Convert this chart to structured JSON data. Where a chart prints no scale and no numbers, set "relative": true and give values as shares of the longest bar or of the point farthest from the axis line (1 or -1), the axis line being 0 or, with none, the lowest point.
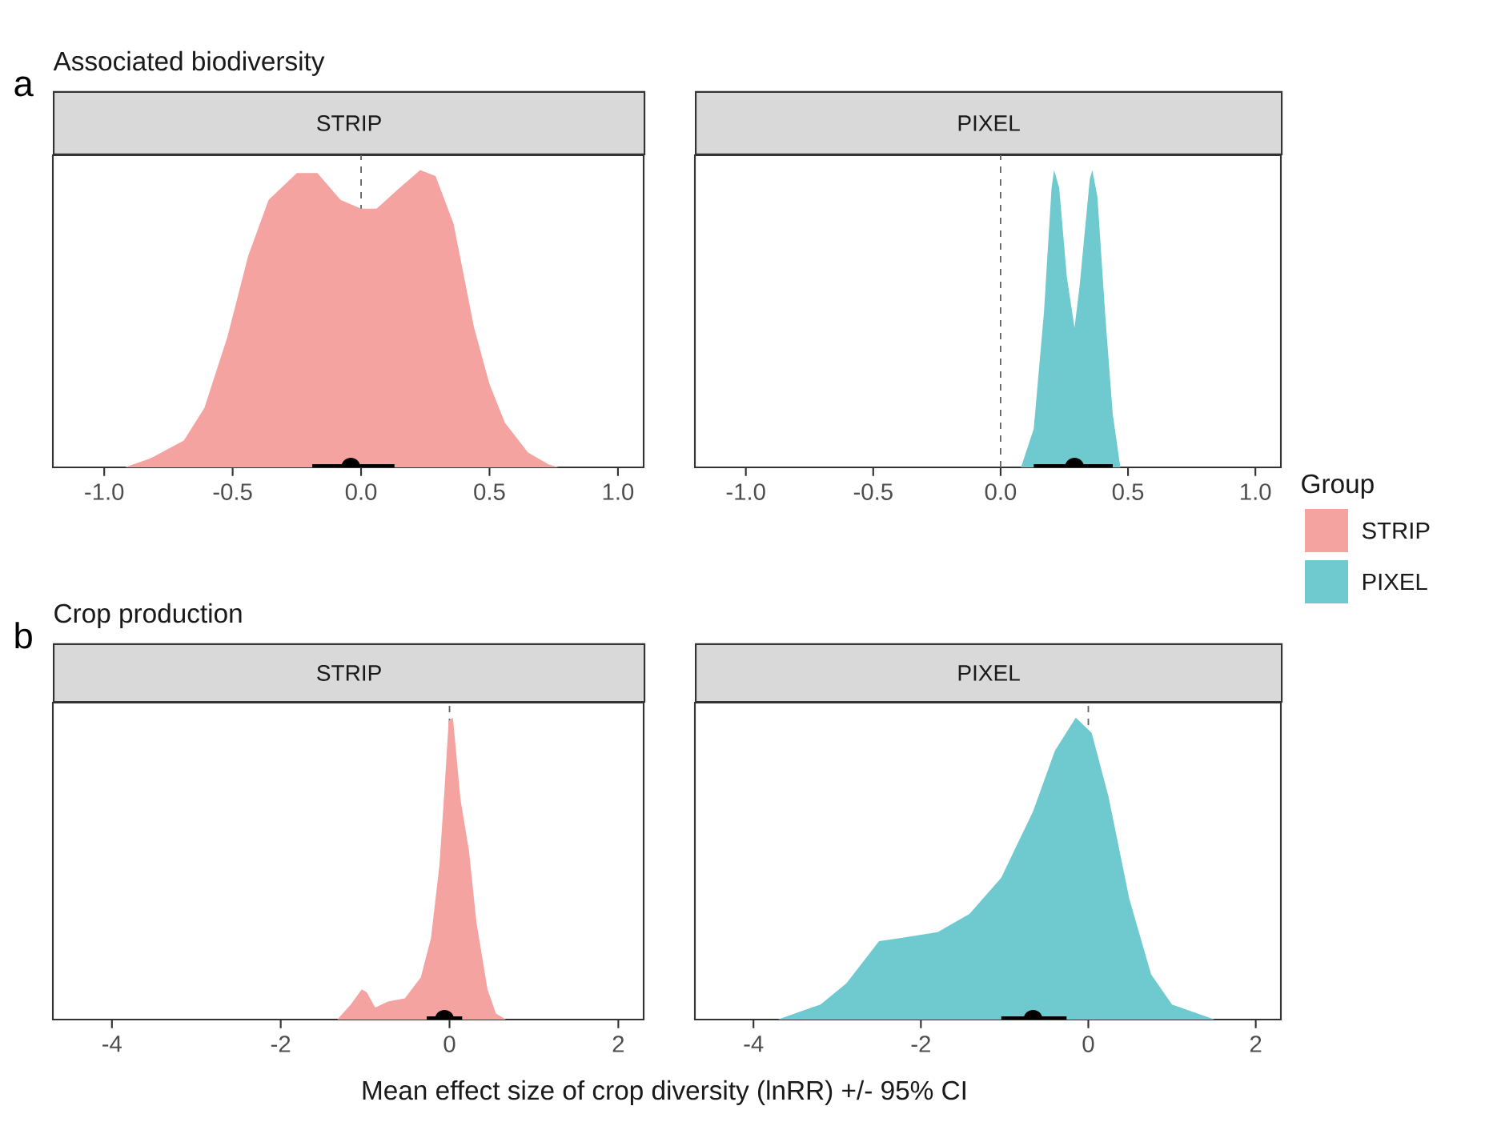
{
  "chart_data": [
    {
      "type": "area",
      "title": "Associated biodiversity",
      "subtitle": "STRIP",
      "annotations": [
        "a"
      ],
      "relative": true,
      "xlim": [
        -1.2,
        1.1
      ],
      "xticks": [
        {
          "value": -1,
          "label": "-1.0"
        },
        -0.5,
        {
          "value": 0,
          "label": "0.0"
        },
        0.5,
        {
          "value": 1,
          "label": "1.0"
        }
      ],
      "ref_lines": [
        {
          "axis": "x",
          "value": 0,
          "color": "#666666",
          "line_style": "dashed"
        }
      ],
      "series": [
        {
          "name": "STRIP",
          "color": "#f5a3a0",
          "x": [
            -0.92,
            -0.82,
            -0.69,
            -0.61,
            -0.52,
            -0.44,
            -0.36,
            -0.25,
            -0.17,
            -0.08,
            0,
            0.06,
            0.15,
            0.23,
            0.29,
            0.36,
            0.44,
            0.5,
            0.56,
            0.65,
            0.73,
            0.77
          ],
          "values": [
            0,
            0.03,
            0.09,
            0.2,
            0.44,
            0.71,
            0.9,
            0.99,
            0.99,
            0.9,
            0.87,
            0.87,
            0.94,
            1,
            0.98,
            0.82,
            0.47,
            0.28,
            0.15,
            0.05,
            0.01,
            0
          ]
        },
        {
          "type": "scatter",
          "color": "#000000",
          "marker": "circle",
          "x": [
            -0.04
          ],
          "values": [
            0
          ],
          "xerrors": [
            [
              -0.19,
              0.13
            ]
          ]
        }
      ]
    },
    {
      "type": "area",
      "subtitle": "PIXEL",
      "relative": true,
      "xlim": [
        -1.2,
        1.1
      ],
      "xticks": [
        {
          "value": -1,
          "label": "-1.0"
        },
        -0.5,
        {
          "value": 0,
          "label": "0.0"
        },
        0.5,
        {
          "value": 1,
          "label": "1.0"
        }
      ],
      "legend": "right",
      "legend_title": "Group",
      "ref_lines": [
        {
          "axis": "x",
          "value": 0,
          "color": "#666666",
          "line_style": "dashed"
        }
      ],
      "series": [
        {
          "name": "PIXEL",
          "color": "#6fcad0",
          "x": [
            0.08,
            0.13,
            0.17,
            0.2,
            0.21,
            0.23,
            0.26,
            0.29,
            0.31,
            0.35,
            0.36,
            0.38,
            0.41,
            0.44,
            0.47
          ],
          "values": [
            0,
            0.13,
            0.52,
            0.94,
            1,
            0.94,
            0.64,
            0.47,
            0.61,
            0.97,
            1,
            0.91,
            0.52,
            0.18,
            0
          ]
        },
        {
          "type": "scatter",
          "color": "#000000",
          "marker": "circle",
          "x": [
            0.29
          ],
          "values": [
            0
          ],
          "xerrors": [
            [
              0.13,
              0.44
            ]
          ]
        }
      ]
    },
    {
      "type": "area",
      "title": "Crop production",
      "subtitle": "STRIP",
      "annotations": [
        "b"
      ],
      "xlabel": "Mean effect size of crop diversity (lnRR) +/- 95% CI",
      "relative": true,
      "xlim": [
        -4.7,
        2.3
      ],
      "xticks": [
        -4,
        -2,
        0,
        2
      ],
      "ref_lines": [
        {
          "axis": "x",
          "value": 0,
          "color": "#666666",
          "line_style": "dashed"
        }
      ],
      "series": [
        {
          "color": "#f5a3a0",
          "x": [
            -1.33,
            -1.17,
            -1.04,
            -0.98,
            -0.88,
            -0.73,
            -0.53,
            -0.34,
            -0.22,
            -0.12,
            -0.06,
            -0.01,
            0.04,
            0.13,
            0.23,
            0.32,
            0.45,
            0.55,
            0.67
          ],
          "values": [
            0,
            0.05,
            0.1,
            0.09,
            0.04,
            0.06,
            0.07,
            0.14,
            0.27,
            0.51,
            0.76,
            0.99,
            1,
            0.73,
            0.56,
            0.32,
            0.1,
            0.02,
            0
          ]
        },
        {
          "type": "scatter",
          "color": "#000000",
          "marker": "circle",
          "x": [
            -0.06
          ],
          "values": [
            0
          ],
          "xerrors": [
            [
              -0.27,
              0.15
            ]
          ]
        }
      ]
    },
    {
      "type": "area",
      "subtitle": "PIXEL",
      "relative": true,
      "xlim": [
        -4.7,
        2.3
      ],
      "xticks": [
        -4,
        -2,
        0,
        2
      ],
      "ref_lines": [
        {
          "axis": "x",
          "value": 0,
          "color": "#666666",
          "line_style": "dashed"
        }
      ],
      "series": [
        {
          "color": "#6fcad0",
          "x": [
            -3.71,
            -3.2,
            -2.89,
            -2.5,
            -2.25,
            -1.8,
            -1.42,
            -1.04,
            -0.66,
            -0.4,
            -0.15,
            0.04,
            0.24,
            0.49,
            0.75,
            1.0,
            1.51
          ],
          "values": [
            0,
            0.05,
            0.12,
            0.26,
            0.27,
            0.29,
            0.35,
            0.47,
            0.69,
            0.89,
            1,
            0.95,
            0.74,
            0.4,
            0.15,
            0.05,
            0
          ]
        },
        {
          "type": "scatter",
          "color": "#000000",
          "marker": "circle",
          "x": [
            -0.66
          ],
          "values": [
            0
          ],
          "xerrors": [
            [
              -1.04,
              -0.26
            ]
          ]
        }
      ]
    }
  ]
}
